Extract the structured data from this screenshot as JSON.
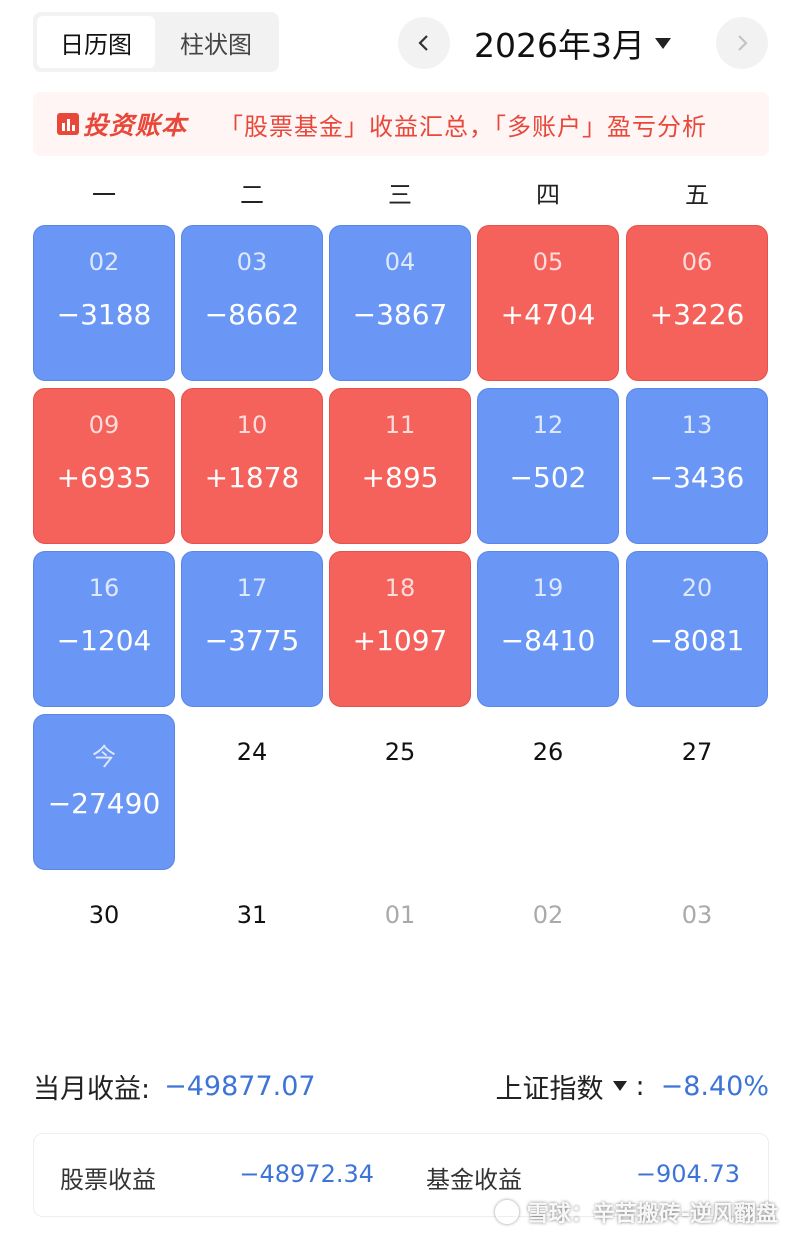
{
  "tabs": {
    "calendar": "日历图",
    "bar": "柱状图"
  },
  "month": {
    "title": "2026年3月"
  },
  "banner": {
    "logo": "投资账本",
    "text": "「股票基金」收益汇总，「多账户」盈亏分析"
  },
  "weekdays": [
    "一",
    "二",
    "三",
    "四",
    "五"
  ],
  "days": [
    {
      "date": "02",
      "value": "−3188",
      "status": "loss"
    },
    {
      "date": "03",
      "value": "−8662",
      "status": "loss"
    },
    {
      "date": "04",
      "value": "−3867",
      "status": "loss"
    },
    {
      "date": "05",
      "value": "+4704",
      "status": "gain"
    },
    {
      "date": "06",
      "value": "+3226",
      "status": "gain"
    },
    {
      "date": "09",
      "value": "+6935",
      "status": "gain"
    },
    {
      "date": "10",
      "value": "+1878",
      "status": "gain"
    },
    {
      "date": "11",
      "value": "+895",
      "status": "gain"
    },
    {
      "date": "12",
      "value": "−502",
      "status": "loss"
    },
    {
      "date": "13",
      "value": "−3436",
      "status": "loss"
    },
    {
      "date": "16",
      "value": "−1204",
      "status": "loss"
    },
    {
      "date": "17",
      "value": "−3775",
      "status": "loss"
    },
    {
      "date": "18",
      "value": "+1097",
      "status": "gain"
    },
    {
      "date": "19",
      "value": "−8410",
      "status": "loss"
    },
    {
      "date": "20",
      "value": "−8081",
      "status": "loss"
    },
    {
      "date": "今",
      "value": "−27490",
      "status": "loss"
    }
  ],
  "future_days": [
    "24",
    "25",
    "26",
    "27",
    "30",
    "31"
  ],
  "next_month_days": [
    "01",
    "02",
    "03"
  ],
  "summary": {
    "month_label": "当月收益:",
    "month_value": "−49877.07",
    "index_label": "上证指数",
    "index_colon": ":",
    "index_value": "−8.40%"
  },
  "breakdown": {
    "stock_label": "股票收益",
    "stock_value": "−48972.34",
    "fund_label": "基金收益",
    "fund_value": "−904.73"
  },
  "watermark": {
    "text": "雪球：辛苦搬砖-逆风翻盘"
  },
  "colors": {
    "gain": "#f5625b",
    "loss": "#6a97f6",
    "summary_value": "#3e74d8",
    "banner": "#e8483a"
  }
}
